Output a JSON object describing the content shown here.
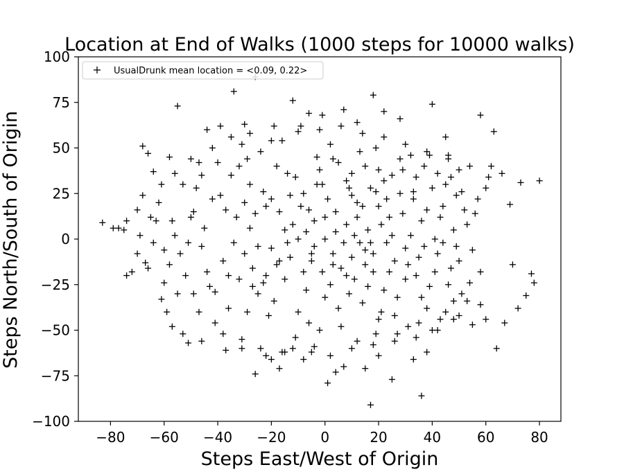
{
  "chart_data": {
    "type": "scatter",
    "title": "Location at End of Walks (1000 steps for 10000 walks)",
    "xlabel": "Steps East/West of Origin",
    "ylabel": "Steps North/South of Origin",
    "xlim": [
      -92,
      88
    ],
    "ylim": [
      -100,
      100
    ],
    "xticks": [
      -80,
      -60,
      -40,
      -20,
      0,
      20,
      40,
      60,
      80
    ],
    "yticks": [
      -100,
      -75,
      -50,
      -25,
      0,
      25,
      50,
      75,
      100
    ],
    "xtick_labels": [
      "−80",
      "−60",
      "−40",
      "−20",
      "0",
      "20",
      "40",
      "60",
      "80"
    ],
    "ytick_labels": [
      "−100",
      "−75",
      "−50",
      "−25",
      "0",
      "25",
      "50",
      "75",
      "100"
    ],
    "grid": false,
    "legend": {
      "position": "top-left",
      "marker": "+",
      "color": "#000000"
    },
    "series": [
      {
        "name": "UsualDrunk mean location = <0.09, 0.22>",
        "marker": "+",
        "color": "#000000",
        "points": [
          [
            -83,
            9
          ],
          [
            -79,
            6
          ],
          [
            -77,
            6
          ],
          [
            -74,
            10
          ],
          [
            -75,
            5
          ],
          [
            -74,
            -20
          ],
          [
            -72,
            -18
          ],
          [
            -70,
            16
          ],
          [
            -68,
            24
          ],
          [
            -67,
            -13
          ],
          [
            -68,
            51
          ],
          [
            -66,
            47
          ],
          [
            -64,
            37
          ],
          [
            -63,
            10
          ],
          [
            -61,
            -33
          ],
          [
            -60,
            -24
          ],
          [
            -58,
            45
          ],
          [
            -57,
            -48
          ],
          [
            -55,
            73
          ],
          [
            -51,
            -57
          ],
          [
            -49,
            15
          ],
          [
            -47,
            -40
          ],
          [
            -46,
            35
          ],
          [
            -44,
            60
          ],
          [
            -41,
            -29
          ],
          [
            -39,
            62
          ],
          [
            -37,
            -61
          ],
          [
            -34,
            81
          ],
          [
            -31,
            -55
          ],
          [
            -30,
            63
          ],
          [
            -29,
            44
          ],
          [
            -26,
            -74
          ],
          [
            -26,
            89
          ],
          [
            -22,
            -64
          ],
          [
            -20,
            -66
          ],
          [
            -17,
            -71
          ],
          [
            -15,
            -62
          ],
          [
            -12,
            76
          ],
          [
            -10,
            59
          ],
          [
            -8,
            -66
          ],
          [
            -6,
            69
          ],
          [
            -4,
            -59
          ],
          [
            -1,
            68
          ],
          [
            1,
            -79
          ],
          [
            4,
            -73
          ],
          [
            7,
            71
          ],
          [
            7,
            -70
          ],
          [
            12,
            64
          ],
          [
            15,
            -71
          ],
          [
            17,
            -91
          ],
          [
            18,
            79
          ],
          [
            20,
            -64
          ],
          [
            22,
            70
          ],
          [
            25,
            -77
          ],
          [
            28,
            66
          ],
          [
            33,
            -66
          ],
          [
            36,
            -86
          ],
          [
            38,
            -62
          ],
          [
            40,
            74
          ],
          [
            45,
            56
          ],
          [
            48,
            -44
          ],
          [
            50,
            38
          ],
          [
            53,
            -34
          ],
          [
            55,
            -47
          ],
          [
            58,
            68
          ],
          [
            60,
            -44
          ],
          [
            62,
            40
          ],
          [
            63,
            59
          ],
          [
            64,
            -60
          ],
          [
            66,
            36
          ],
          [
            67,
            -46
          ],
          [
            69,
            19
          ],
          [
            70,
            -14
          ],
          [
            72,
            -38
          ],
          [
            73,
            31
          ],
          [
            75,
            -31
          ],
          [
            77,
            -19
          ],
          [
            78,
            -24
          ],
          [
            80,
            32
          ],
          [
            57,
            22
          ],
          [
            -52,
            -20
          ],
          [
            -48,
            28
          ],
          [
            -44,
            -18
          ],
          [
            -40,
            42
          ],
          [
            -36,
            -38
          ],
          [
            -33,
            12
          ],
          [
            -30,
            -8
          ],
          [
            -28,
            30
          ],
          [
            -25,
            -30
          ],
          [
            -22,
            18
          ],
          [
            -20,
            -5
          ],
          [
            -18,
            40
          ],
          [
            -15,
            -22
          ],
          [
            -12,
            8
          ],
          [
            -10,
            -40
          ],
          [
            -8,
            25
          ],
          [
            -5,
            -12
          ],
          [
            -3,
            45
          ],
          [
            0,
            0
          ],
          [
            2,
            -25
          ],
          [
            4,
            15
          ],
          [
            6,
            -48
          ],
          [
            8,
            32
          ],
          [
            10,
            -10
          ],
          [
            12,
            20
          ],
          [
            14,
            -35
          ],
          [
            16,
            5
          ],
          [
            18,
            -18
          ],
          [
            20,
            38
          ],
          [
            22,
            -28
          ],
          [
            24,
            12
          ],
          [
            26,
            -42
          ],
          [
            28,
            25
          ],
          [
            30,
            -5
          ],
          [
            32,
            46
          ],
          [
            34,
            -20
          ],
          [
            36,
            10
          ],
          [
            38,
            -38
          ],
          [
            40,
            28
          ],
          [
            42,
            -8
          ],
          [
            44,
            18
          ],
          [
            46,
            -25
          ],
          [
            48,
            5
          ],
          [
            50,
            -12
          ],
          [
            -56,
            2
          ],
          [
            -54,
            -8
          ],
          [
            -50,
            12
          ],
          [
            -46,
            -4
          ],
          [
            -42,
            22
          ],
          [
            -38,
            -12
          ],
          [
            -35,
            35
          ],
          [
            -32,
            -22
          ],
          [
            -28,
            6
          ],
          [
            -24,
            48
          ],
          [
            -21,
            -42
          ],
          [
            -17,
            15
          ],
          [
            -14,
            -2
          ],
          [
            -11,
            34
          ],
          [
            -7,
            -28
          ],
          [
            -4,
            10
          ],
          [
            -2,
            -50
          ],
          [
            1,
            22
          ],
          [
            3,
            -8
          ],
          [
            5,
            42
          ],
          [
            9,
            -30
          ],
          [
            11,
            2
          ],
          [
            13,
            48
          ],
          [
            15,
            -14
          ],
          [
            17,
            28
          ],
          [
            19,
            -52
          ],
          [
            21,
            8
          ],
          [
            23,
            -2
          ],
          [
            25,
            35
          ],
          [
            27,
            -32
          ],
          [
            29,
            14
          ],
          [
            31,
            -48
          ],
          [
            33,
            22
          ],
          [
            35,
            -10
          ],
          [
            37,
            40
          ],
          [
            39,
            -26
          ],
          [
            41,
            0
          ],
          [
            43,
            -44
          ],
          [
            45,
            30
          ],
          [
            47,
            -16
          ],
          [
            49,
            24
          ],
          [
            51,
            -30
          ],
          [
            53,
            8
          ],
          [
            55,
            -6
          ],
          [
            -62,
            20
          ],
          [
            -60,
            -6
          ],
          [
            -58,
            -14
          ],
          [
            -53,
            30
          ],
          [
            -49,
            -30
          ],
          [
            -45,
            6
          ],
          [
            -41,
            -46
          ],
          [
            -37,
            16
          ],
          [
            -34,
            -2
          ],
          [
            -31,
            52
          ],
          [
            -27,
            -16
          ],
          [
            -23,
            26
          ],
          [
            -19,
            -34
          ],
          [
            -16,
            54
          ],
          [
            -13,
            -10
          ],
          [
            -9,
            18
          ],
          [
            -6,
            -46
          ],
          [
            -3,
            30
          ],
          [
            -1,
            -18
          ],
          [
            2,
            52
          ],
          [
            5,
            -38
          ],
          [
            8,
            8
          ],
          [
            10,
            36
          ],
          [
            12,
            -56
          ],
          [
            14,
            18
          ],
          [
            16,
            -26
          ],
          [
            19,
            50
          ],
          [
            21,
            -40
          ],
          [
            23,
            22
          ],
          [
            26,
            -12
          ],
          [
            28,
            44
          ],
          [
            30,
            -22
          ],
          [
            32,
            2
          ],
          [
            34,
            34
          ],
          [
            36,
            -32
          ],
          [
            38,
            16
          ],
          [
            40,
            -50
          ],
          [
            42,
            36
          ],
          [
            44,
            -2
          ],
          [
            46,
            44
          ],
          [
            48,
            -34
          ],
          [
            52,
            16
          ],
          [
            -64,
            -2
          ],
          [
            -61,
            30
          ],
          [
            -57,
            10
          ],
          [
            -55,
            -30
          ],
          [
            -51,
            -2
          ],
          [
            -47,
            42
          ],
          [
            -43,
            -26
          ],
          [
            -39,
            24
          ],
          [
            -36,
            -20
          ],
          [
            -32,
            40
          ],
          [
            -29,
            -40
          ],
          [
            -26,
            14
          ],
          [
            -23,
            -24
          ],
          [
            -20,
            54
          ],
          [
            -17,
            -12
          ],
          [
            -14,
            36
          ],
          [
            -11,
            -54
          ],
          [
            -7,
            4
          ],
          [
            -5,
            -8
          ],
          [
            -2,
            38
          ],
          [
            0,
            -32
          ],
          [
            3,
            44
          ],
          [
            6,
            -16
          ],
          [
            9,
            28
          ],
          [
            11,
            -22
          ],
          [
            13,
            -2
          ],
          [
            15,
            40
          ],
          [
            18,
            -8
          ],
          [
            20,
            -44
          ],
          [
            22,
            32
          ],
          [
            25,
            2
          ],
          [
            27,
            -52
          ],
          [
            29,
            38
          ],
          [
            31,
            -14
          ],
          [
            33,
            26
          ],
          [
            35,
            -46
          ],
          [
            37,
            -4
          ],
          [
            39,
            46
          ],
          [
            41,
            -18
          ],
          [
            43,
            12
          ],
          [
            45,
            -40
          ],
          [
            47,
            34
          ],
          [
            49,
            -4
          ],
          [
            51,
            26
          ],
          [
            54,
            -24
          ],
          [
            56,
            14
          ],
          [
            58,
            -18
          ],
          [
            60,
            28
          ],
          [
            -66,
            -16
          ],
          [
            -69,
            2
          ],
          [
            -70,
            -8
          ],
          [
            -65,
            12
          ],
          [
            -59,
            -40
          ],
          [
            -56,
            36
          ],
          [
            -53,
            -52
          ],
          [
            -50,
            44
          ],
          [
            -46,
            -56
          ],
          [
            -42,
            50
          ],
          [
            -38,
            -52
          ],
          [
            -35,
            56
          ],
          [
            -31,
            -60
          ],
          [
            -28,
            58
          ],
          [
            -24,
            -60
          ],
          [
            -19,
            62
          ],
          [
            -16,
            -62
          ],
          [
            -12,
            -60
          ],
          [
            -9,
            62
          ],
          [
            -5,
            -62
          ],
          [
            -2,
            60
          ],
          [
            2,
            -64
          ],
          [
            6,
            62
          ],
          [
            10,
            -60
          ],
          [
            14,
            58
          ],
          [
            18,
            -58
          ],
          [
            22,
            56
          ],
          [
            26,
            -56
          ],
          [
            30,
            52
          ],
          [
            34,
            -54
          ],
          [
            38,
            48
          ],
          [
            42,
            -50
          ],
          [
            46,
            46
          ],
          [
            50,
            -42
          ],
          [
            54,
            40
          ],
          [
            58,
            -36
          ],
          [
            61,
            34
          ],
          [
            -20,
            22
          ],
          [
            -18,
            -14
          ],
          [
            -10,
            0
          ],
          [
            -6,
            16
          ],
          [
            -4,
            -4
          ],
          [
            4,
            4
          ],
          [
            7,
            -2
          ],
          [
            12,
            12
          ],
          [
            15,
            -6
          ],
          [
            20,
            18
          ],
          [
            -15,
            5
          ],
          [
            -8,
            -18
          ],
          [
            0,
            12
          ],
          [
            3,
            -14
          ],
          [
            8,
            -20
          ],
          [
            -25,
            -4
          ],
          [
            -22,
            -20
          ],
          [
            -13,
            24
          ],
          [
            -1,
            30
          ],
          [
            10,
            24
          ],
          [
            17,
            -2
          ],
          [
            24,
            -18
          ],
          [
            -30,
            20
          ],
          [
            -27,
            -26
          ],
          [
            19,
            26
          ]
        ]
      }
    ]
  }
}
